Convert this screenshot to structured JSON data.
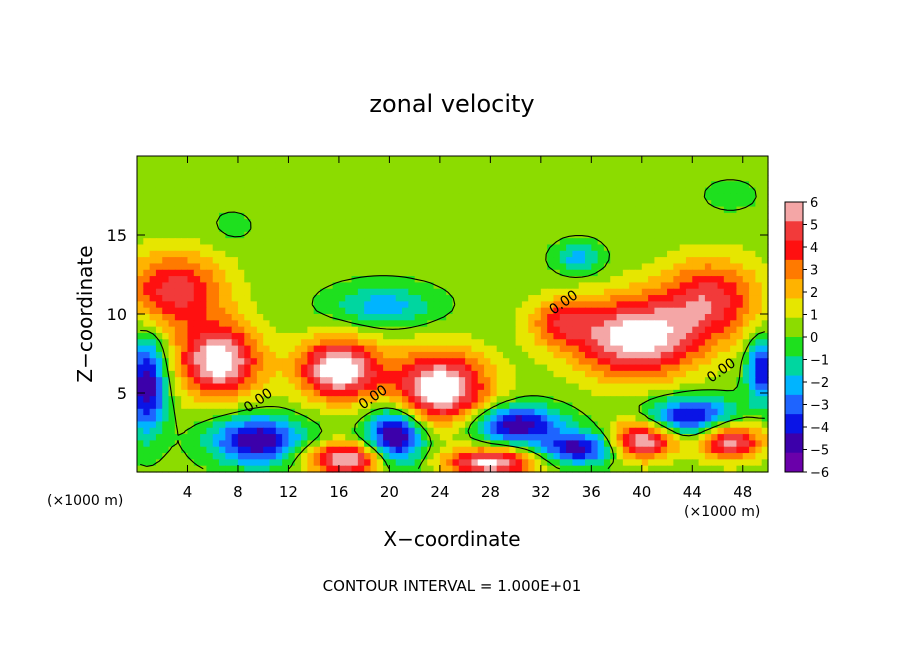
{
  "chart_data": {
    "type": "heatmap",
    "title": "zonal velocity",
    "xlabel": "X−coordinate",
    "ylabel": "Z−coordinate",
    "x_unit_left": "(×1000 m)",
    "x_unit_right": "(×1000 m)",
    "footer": "CONTOUR INTERVAL = 1.000E+01",
    "xlim": [
      0,
      50
    ],
    "ylim": [
      0,
      20
    ],
    "x_ticks": [
      4,
      8,
      12,
      16,
      20,
      24,
      28,
      32,
      36,
      40,
      44,
      48
    ],
    "y_ticks": [
      5,
      10,
      15
    ],
    "colorbar": {
      "ticks": [
        "6",
        "5",
        "4",
        "3",
        "2",
        "1",
        "0",
        "−1",
        "−2",
        "−3",
        "−4",
        "−5",
        "−6"
      ],
      "colors": [
        "#f4a6a6",
        "#f23a3a",
        "#ff1010",
        "#ff7a00",
        "#ffb300",
        "#e6e600",
        "#8cdc00",
        "#1ee01e",
        "#00d6a0",
        "#00b4ff",
        "#1e64ff",
        "#0a14e6",
        "#3c00aa",
        "#6a00aa"
      ]
    },
    "contour_labels": [
      {
        "text": "0.00",
        "x": 9.8,
        "y": 4.3
      },
      {
        "text": "0.00",
        "x": 18.9,
        "y": 4.5
      },
      {
        "text": "0.00",
        "x": 34.0,
        "y": 10.5
      },
      {
        "text": "0.00",
        "x": 46.5,
        "y": 6.2
      }
    ],
    "fields": {
      "background": 0.3,
      "features": [
        {
          "x": 3.0,
          "y": 11.5,
          "rx": 4.0,
          "ry": 2.4,
          "v": 4.5
        },
        {
          "x": 6.5,
          "y": 7.0,
          "rx": 3.2,
          "ry": 2.3,
          "v": 6.5
        },
        {
          "x": 16.0,
          "y": 6.5,
          "rx": 3.2,
          "ry": 1.9,
          "v": 6.8
        },
        {
          "x": 24.0,
          "y": 5.3,
          "rx": 3.8,
          "ry": 2.3,
          "v": 6.8
        },
        {
          "x": 39.5,
          "y": 8.5,
          "rx": 5.0,
          "ry": 2.5,
          "v": 6.5
        },
        {
          "x": 45.5,
          "y": 11.0,
          "rx": 4.0,
          "ry": 2.5,
          "v": 4.2
        },
        {
          "x": 33.5,
          "y": 9.5,
          "rx": 2.5,
          "ry": 1.5,
          "v": 3.0
        },
        {
          "x": 16.5,
          "y": 0.8,
          "rx": 3.0,
          "ry": 1.0,
          "v": 6.0
        },
        {
          "x": 28.0,
          "y": 0.6,
          "rx": 3.5,
          "ry": 0.9,
          "v": 6.0
        },
        {
          "x": 40.0,
          "y": 2.0,
          "rx": 2.5,
          "ry": 1.2,
          "v": 6.0
        },
        {
          "x": 47.0,
          "y": 2.0,
          "rx": 2.5,
          "ry": 1.2,
          "v": 5.5
        },
        {
          "x": 0.8,
          "y": 5.5,
          "rx": 1.5,
          "ry": 3.0,
          "v": -5.5
        },
        {
          "x": 9.5,
          "y": 2.0,
          "rx": 3.5,
          "ry": 1.5,
          "v": -5.5
        },
        {
          "x": 20.5,
          "y": 2.3,
          "rx": 2.2,
          "ry": 1.8,
          "v": -6.0
        },
        {
          "x": 30.0,
          "y": 3.0,
          "rx": 3.5,
          "ry": 1.2,
          "v": -5.5
        },
        {
          "x": 35.0,
          "y": 1.5,
          "rx": 3.0,
          "ry": 1.0,
          "v": -5.0
        },
        {
          "x": 44.0,
          "y": 3.5,
          "rx": 3.5,
          "ry": 1.2,
          "v": -5.0
        },
        {
          "x": 49.5,
          "y": 6.5,
          "rx": 1.2,
          "ry": 2.0,
          "v": -4.5
        },
        {
          "x": 19.5,
          "y": 10.5,
          "rx": 4.0,
          "ry": 1.3,
          "v": -2.5
        },
        {
          "x": 35.0,
          "y": 13.5,
          "rx": 1.8,
          "ry": 1.0,
          "v": -2.5
        },
        {
          "x": 7.5,
          "y": 15.5,
          "rx": 2.0,
          "ry": 1.2,
          "v": -0.6
        },
        {
          "x": 47.0,
          "y": 17.5,
          "rx": 2.5,
          "ry": 1.2,
          "v": -0.6
        }
      ]
    }
  }
}
